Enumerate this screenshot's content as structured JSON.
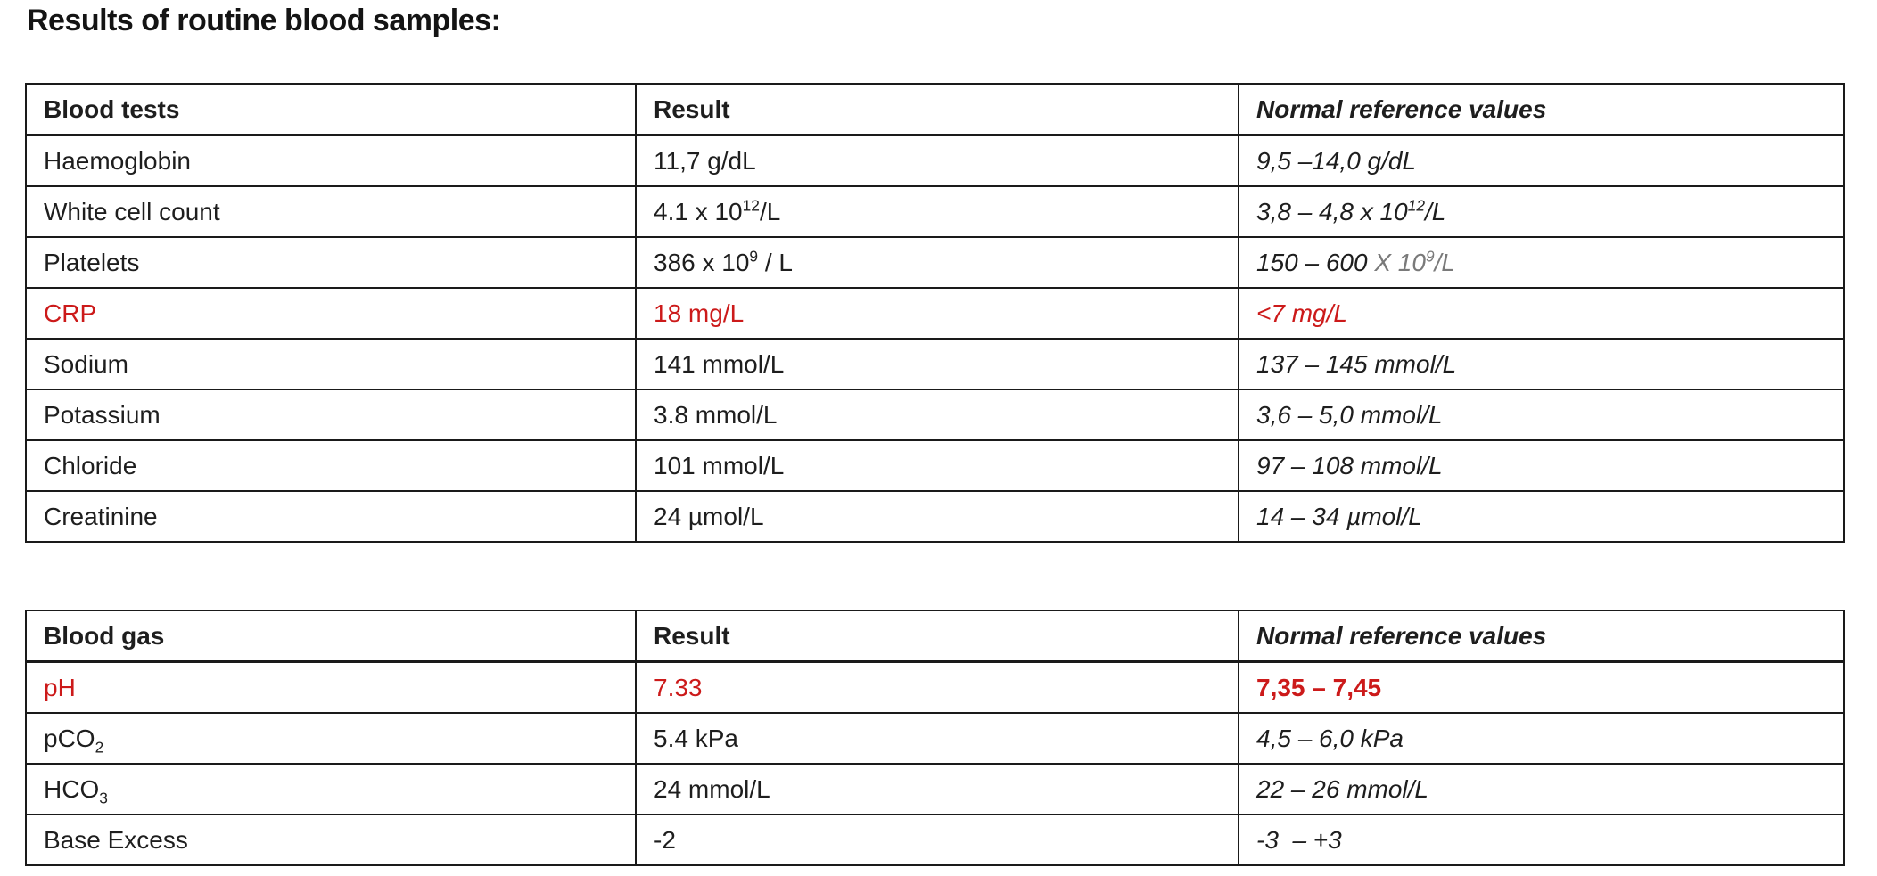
{
  "title": "Results of routine blood samples:",
  "colors": {
    "ink": "#1e1e1e",
    "alert": "#cc1a1a",
    "muted": "#7a7a7a"
  },
  "blood_tests_table": {
    "headers": {
      "tests": "Blood tests",
      "result": "Result",
      "reference": "Normal reference values"
    },
    "rows": {
      "haemoglobin": {
        "label": "Haemoglobin",
        "result": "11,7 g/dL",
        "reference": "9,5 –14,0 g/dL"
      },
      "white_cell_count": {
        "label": "White cell count",
        "result_base": "4.1 x 10",
        "result_sup": "12",
        "result_unit": "/L",
        "reference_base": "3,8 – 4,8 x 10",
        "reference_sup": "12",
        "reference_unit": "/L"
      },
      "platelets": {
        "label": "Platelets",
        "result_base": "386 x 10",
        "result_sup": "9",
        "result_unit": " / L",
        "reference_range": "150 – 600 ",
        "reference_muted_base": "X 10",
        "reference_muted_sup": "9",
        "reference_muted_unit": "/L"
      },
      "crp": {
        "label": "CRP",
        "result": "18 mg/L",
        "reference": "<7 mg/L"
      },
      "sodium": {
        "label": "Sodium",
        "result": "141 mmol/L",
        "reference": "137 – 145 mmol/L"
      },
      "potassium": {
        "label": "Potassium",
        "result": "3.8 mmol/L",
        "reference": "3,6 – 5,0 mmol/L"
      },
      "chloride": {
        "label": "Chloride",
        "result": "101 mmol/L",
        "reference": "97 – 108 mmol/L"
      },
      "creatinine": {
        "label": "Creatinine",
        "result": "24 µmol/L",
        "reference": "14 – 34 µmol/L"
      }
    }
  },
  "blood_gas_table": {
    "headers": {
      "tests": "Blood gas",
      "result": "Result",
      "reference": "Normal reference values"
    },
    "rows": {
      "ph": {
        "label": "pH",
        "result": "7.33",
        "reference": "7,35 – 7,45"
      },
      "pco2": {
        "label_base": "pCO",
        "label_sub": "2",
        "result": "5.4 kPa",
        "reference": "4,5 – 6,0 kPa"
      },
      "hco3": {
        "label_base": "HCO",
        "label_sub": "3",
        "result": "24 mmol/L",
        "reference": "22 – 26 mmol/L"
      },
      "base_excess": {
        "label": "Base Excess",
        "result": "-2",
        "reference": "-3  – +3"
      }
    }
  }
}
